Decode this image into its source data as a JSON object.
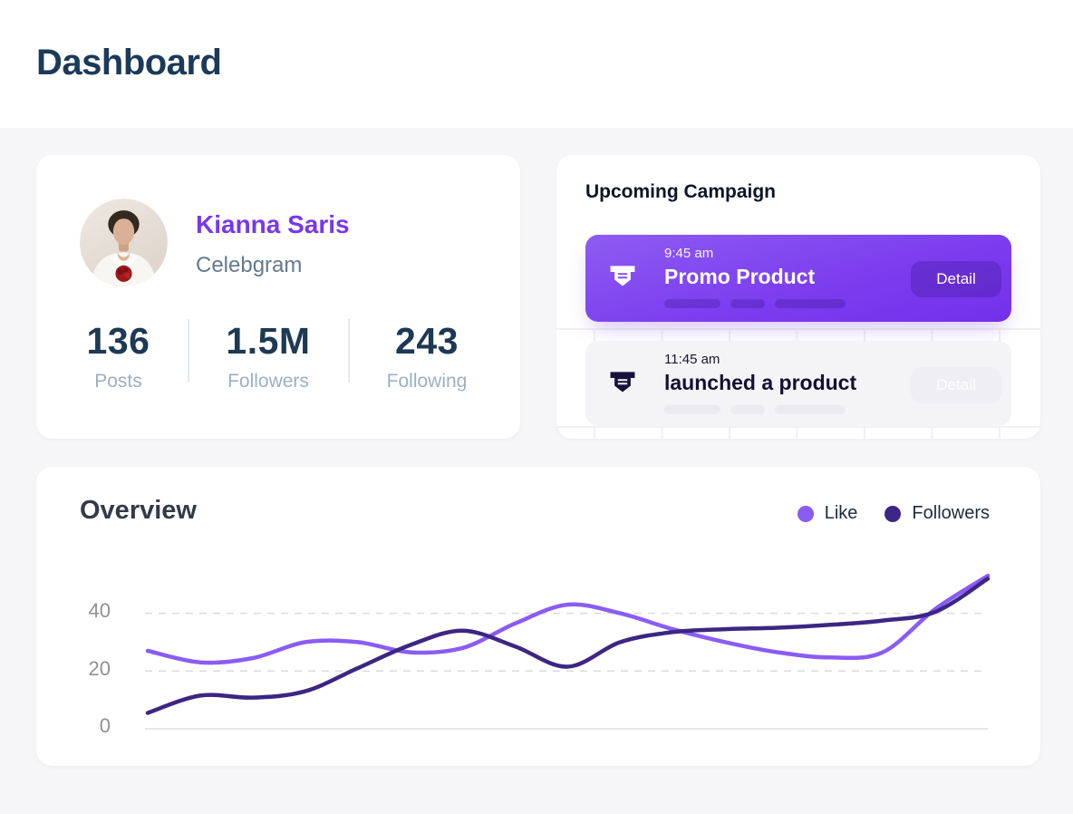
{
  "page": {
    "title": "Dashboard"
  },
  "profile_card": {
    "name": "Kianna Saris",
    "handle": "Celebgram",
    "stats": [
      {
        "value": "136",
        "label": "Posts"
      },
      {
        "value": "1.5M",
        "label": "Followers"
      },
      {
        "value": "243",
        "label": "Following"
      }
    ]
  },
  "campaign_card": {
    "title": "Upcoming Campaign",
    "items": [
      {
        "time": "9:45 am",
        "title": "Promo Product",
        "action": "Detail",
        "highlighted": true
      },
      {
        "time": "11:45 am",
        "title": "launched a product",
        "action": "Detail",
        "highlighted": false
      }
    ]
  },
  "overview_card": {
    "title": "Overview"
  },
  "chart_data": {
    "type": "line",
    "title": "Overview",
    "xlabel": "",
    "ylabel": "",
    "yticks": [
      0,
      20,
      40
    ],
    "ylim": [
      0,
      55
    ],
    "grid": "dashed horizontal gridlines at 20 and 40, solid baseline at 0",
    "legend_position": "top-right",
    "line_style": "smooth curves, no markers",
    "series": [
      {
        "name": "Like",
        "color": "#8A5CF5",
        "values": [
          27,
          23,
          24.5,
          30,
          30,
          26.5,
          28,
          36.5,
          43,
          40,
          34.5,
          30,
          26.5,
          24.7,
          26.5,
          41.5,
          53
        ]
      },
      {
        "name": "Followers",
        "color": "#3D2683",
        "values": [
          5.5,
          11.5,
          10.8,
          13,
          21,
          29,
          34,
          28.5,
          21.5,
          30,
          33.5,
          34.5,
          35,
          36,
          37.5,
          40.5,
          52
        ]
      }
    ]
  },
  "colors": {
    "accent_purple": "#7B3CEE",
    "accent_dark_indigo": "#3D2683",
    "heading_navy": "#1B3A5A",
    "page_background": "#F6F6F8",
    "card_background": "#FFFFFF"
  }
}
